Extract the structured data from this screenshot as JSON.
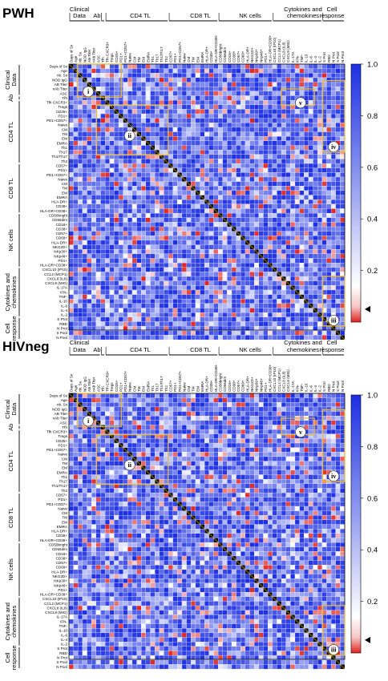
{
  "panels": [
    {
      "label": "PWH",
      "group_headers": [
        "Clinical Data",
        "Ab",
        "CD4 TL",
        "CD8 TL",
        "NK cells",
        "Cytokines and chemokines",
        "Cell response"
      ],
      "callouts": [
        "i",
        "ii",
        "iii",
        "iv",
        "v"
      ]
    },
    {
      "label": "HIVneg",
      "group_headers": [
        "Clinical Data",
        "Ab",
        "CD4 TL",
        "CD8 TL",
        "NK cells",
        "Cytokines and chemokines",
        "Cell response"
      ],
      "callouts": [
        "i",
        "ii",
        "iii",
        "iv",
        "v"
      ]
    }
  ],
  "chart_data": [
    {
      "type": "heatmap",
      "title": "PWH",
      "groups": [
        {
          "name": "Clinical Data",
          "variables": [
            "Days of Sx",
            "Age",
            "nb. Sx",
            "NOD IgG",
            "AB Titer",
            "nAb Titer",
            "ASC"
          ]
        },
        {
          "name": "Ab",
          "variables": [
            "Tfh"
          ]
        },
        {
          "name": "CD4 TL",
          "variables": [
            "Tfh CXCR3+",
            "Tregs",
            "CD25+",
            "PD1+",
            "PD1+CD57+",
            "Naive",
            "CM",
            "TM",
            "EM",
            "EMRA",
            "Th1",
            "Th17",
            "Th1/Th17",
            "Th2"
          ]
        },
        {
          "name": "CD8 TL",
          "variables": [
            "CD57+",
            "PD1+",
            "PD1+CD57+",
            "Naive",
            "CM",
            "TM",
            "EM",
            "EMRA",
            "HLA-DR+",
            "CD38+",
            "HLA-DR+CD38+"
          ]
        },
        {
          "name": "NK cells",
          "variables": [
            "CD56bright",
            "CD56dim",
            "CD16+",
            "CD38+",
            "CD57+",
            "CD69+",
            "HLA-DR+",
            "NKG2D+",
            "NKp30+",
            "NKp46+",
            "PD1+",
            "HLA-DR+CD38+"
          ]
        },
        {
          "name": "Cytokines and chemokines",
          "variables": [
            "CXCL10 (IP10)",
            "CCL2 (MCP1)",
            "CXCL8 (IL8)",
            "CXCL9 (MIG)",
            "IL-17A",
            "IFN-",
            "TNF-",
            "IL-10",
            "IL-6",
            "IL-4",
            "IL-2"
          ]
        },
        {
          "name": "Cell response",
          "variables": [
            "S Prot",
            "RBD",
            "N Prot",
            "S Pool",
            "N Pool"
          ]
        }
      ],
      "colorbar": {
        "min": 0,
        "max": 1.0,
        "ticks": [
          0.2,
          0.4,
          0.6,
          0.8,
          1.0
        ],
        "colors": [
          "#e0241f",
          "#ffffff",
          "#1c2fe3"
        ],
        "marker": 0.05
      },
      "diagonal_color": "#000000"
    },
    {
      "type": "heatmap",
      "title": "HIVneg",
      "groups": [
        {
          "name": "Clinical Data",
          "variables": [
            "Days of Sx",
            "Age",
            "nb. Sx",
            "NOD IgG",
            "AB Titer",
            "nAb Titer",
            "ASC"
          ]
        },
        {
          "name": "Ab",
          "variables": [
            "Tfh"
          ]
        },
        {
          "name": "CD4 TL",
          "variables": [
            "Tfh CXCR3+",
            "Tregs",
            "CD25+",
            "PD1+",
            "PD1+CD57+",
            "Naive",
            "CM",
            "TM",
            "EM",
            "EMRA",
            "Th1",
            "Th17",
            "Th1/Th17",
            "Th2"
          ]
        },
        {
          "name": "CD8 TL",
          "variables": [
            "CD57+",
            "PD1+",
            "PD1+CD57+",
            "Naive",
            "CM",
            "TM",
            "EM",
            "EMRA",
            "HLA-DR+",
            "CD38+",
            "HLA-DR+CD38+"
          ]
        },
        {
          "name": "NK cells",
          "variables": [
            "CD56bright",
            "CD56dim",
            "CD16+",
            "CD38+",
            "CD57+",
            "CD69+",
            "HLA-DR+",
            "NKG2D+",
            "NKp30+",
            "NKp46+",
            "PD1+",
            "HLA-DR+CD38+"
          ]
        },
        {
          "name": "Cytokines and chemokines",
          "variables": [
            "CXCL10 (IP10)",
            "CCL2 (MCP1)",
            "CXCL8 (IL8)",
            "CXCL9 (MIG)",
            "IL-17A",
            "IFN-",
            "TNF-",
            "IL-10",
            "IL-6",
            "IL-4",
            "IL-2"
          ]
        },
        {
          "name": "Cell response",
          "variables": [
            "S Prot",
            "RBD",
            "N Prot",
            "S Pool",
            "N Pool"
          ]
        }
      ],
      "colorbar": {
        "min": 0,
        "max": 1.0,
        "ticks": [
          0.2,
          0.4,
          0.6,
          0.8,
          1.0
        ],
        "colors": [
          "#e0241f",
          "#ffffff",
          "#1c2fe3"
        ],
        "marker": 0.05
      },
      "diagonal_color": "#000000"
    }
  ]
}
